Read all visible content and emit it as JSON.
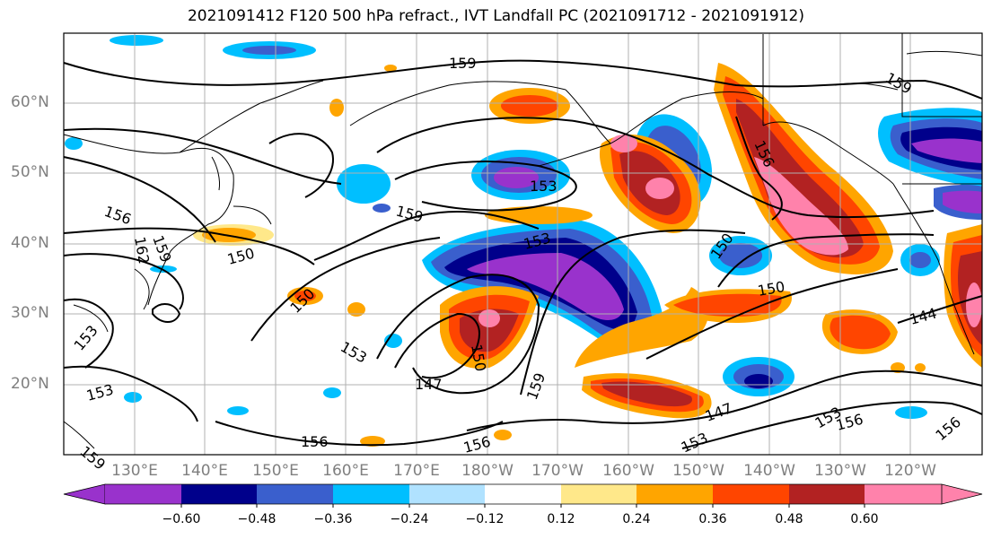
{
  "title": "2021091412 F120 500 hPa refract., IVT Landfall PC (2021091712 - 2021091912)",
  "lat_labels": [
    "60°N",
    "50°N",
    "40°N",
    "30°N",
    "20°N"
  ],
  "lon_labels": [
    "130°E",
    "140°E",
    "150°E",
    "160°E",
    "170°E",
    "180°W",
    "170°W",
    "160°W",
    "150°W",
    "140°W",
    "130°W",
    "120°W"
  ],
  "colorbar": {
    "ticks": [
      "−0.60",
      "−0.48",
      "−0.36",
      "−0.24",
      "−0.12",
      "0.12",
      "0.24",
      "0.36",
      "0.48",
      "0.60"
    ],
    "colors": [
      "#9932cc",
      "#00008b",
      "#3a5fcd",
      "#00bfff",
      "#b0e2ff",
      "#ffffff",
      "#ffe88a",
      "#ffa500",
      "#ff4500",
      "#b22222",
      "#ff82ab"
    ]
  },
  "contour_labels": [
    "159",
    "159",
    "156",
    "153",
    "159",
    "156",
    "162",
    "159",
    "150",
    "153",
    "150",
    "150",
    "150",
    "153",
    "147",
    "150",
    "159",
    "153",
    "147",
    "156",
    "156",
    "153",
    "156",
    "144",
    "156",
    "153",
    "159",
    "153"
  ],
  "map_colors": {
    "contour": "#000000",
    "coast": "#000000",
    "grid": "#b0b0b0"
  }
}
